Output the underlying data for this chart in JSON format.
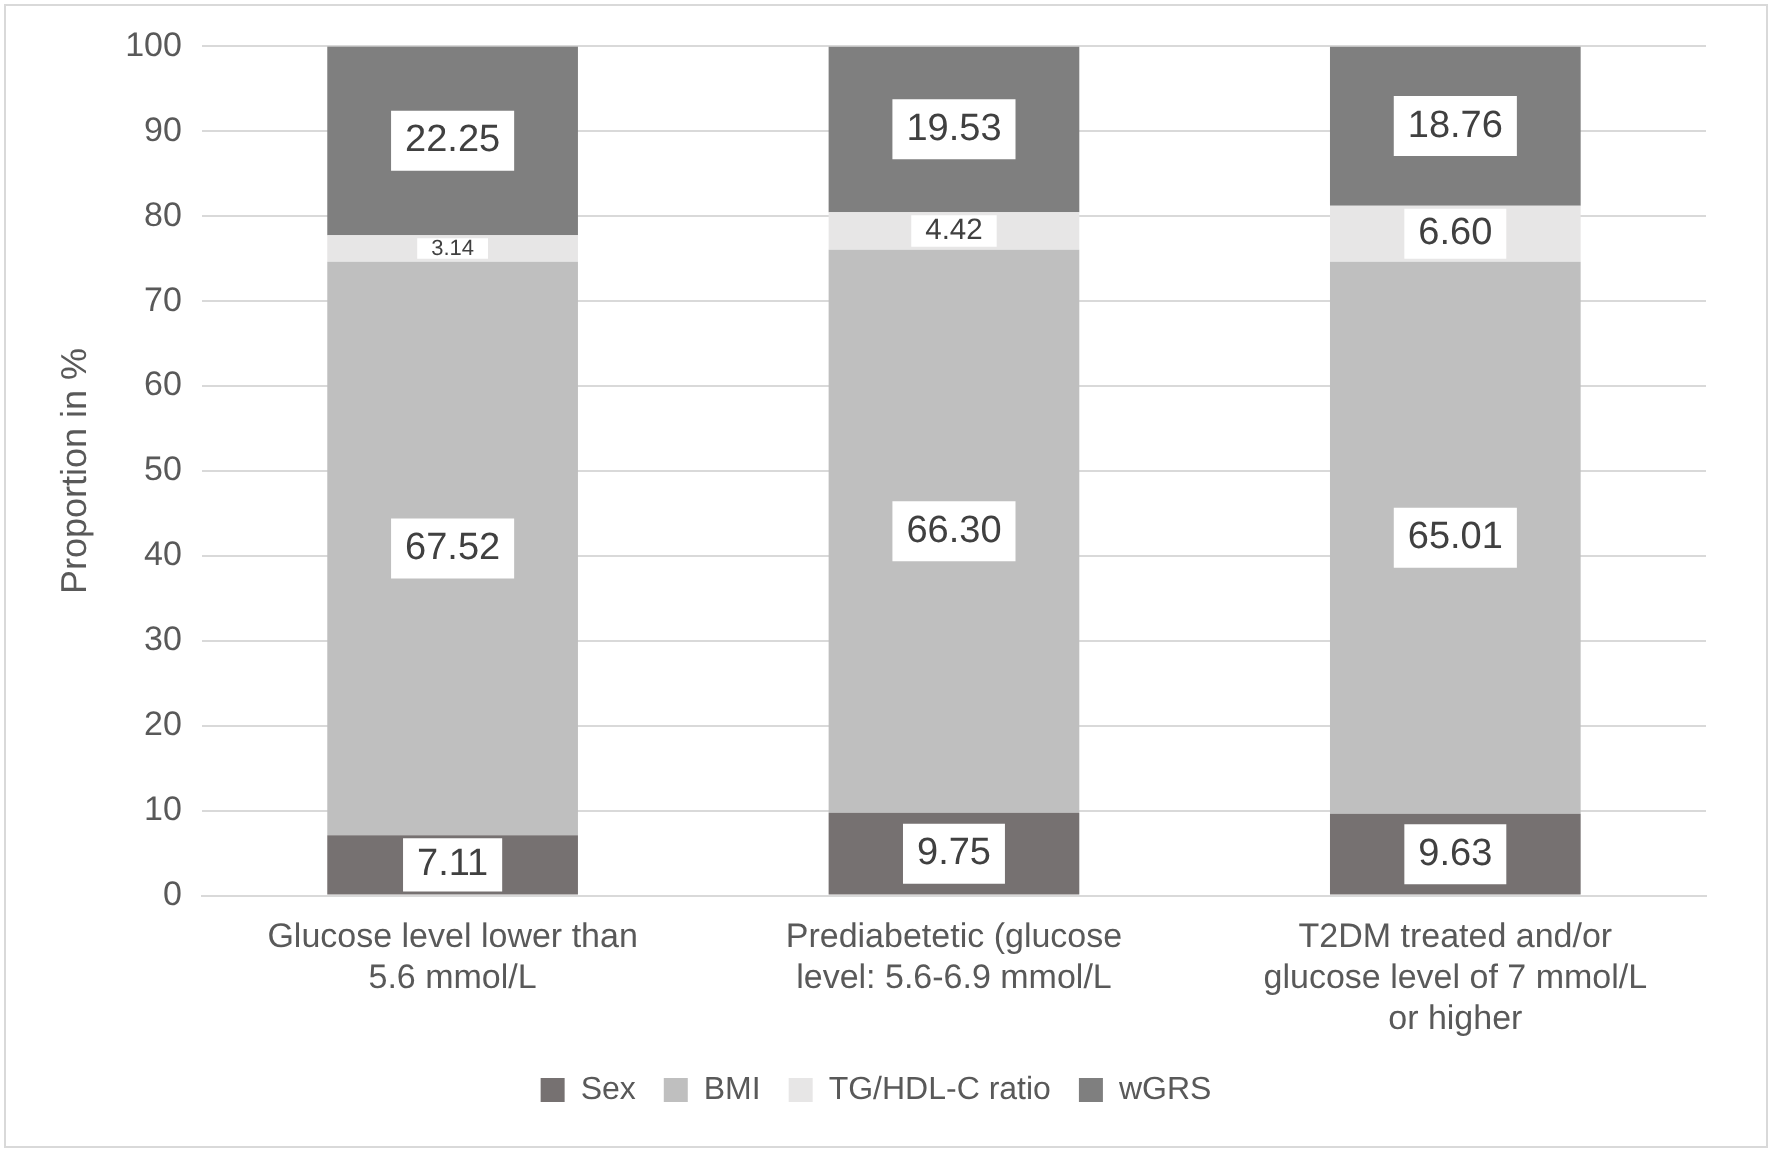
{
  "chart_data": {
    "type": "bar",
    "stacked": true,
    "ylabel": "Proportion in %",
    "categories": [
      "Glucose level lower than 5.6 mmol/L",
      "Prediabetetic (glucose level: 5.6-6.9 mmol/L",
      "T2DM treated and/or glucose level of 7 mmol/L or higher"
    ],
    "series": [
      {
        "name": "Sex",
        "color": "#767171",
        "values": [
          7.11,
          9.75,
          9.63
        ],
        "value_labels": [
          "7.11",
          "9.75",
          "9.63"
        ]
      },
      {
        "name": "BMI",
        "color": "#bfbfbf",
        "values": [
          67.52,
          66.3,
          65.01
        ],
        "value_labels": [
          "67.52",
          "66.30",
          "65.01"
        ]
      },
      {
        "name": "TG/HDL-C ratio",
        "color": "#e7e6e6",
        "values": [
          3.14,
          4.42,
          6.6
        ],
        "value_labels": [
          "3.14",
          "4.42",
          "6.60"
        ]
      },
      {
        "name": "wGRS",
        "color": "#7f7f7f",
        "values": [
          22.25,
          19.53,
          18.76
        ],
        "value_labels": [
          "22.25",
          "19.53",
          "18.76"
        ]
      }
    ],
    "ylim": [
      0,
      100
    ],
    "yticks": [
      0,
      10,
      20,
      30,
      40,
      50,
      60,
      70,
      80,
      90,
      100
    ],
    "grid": "y",
    "legend": "bottom"
  }
}
